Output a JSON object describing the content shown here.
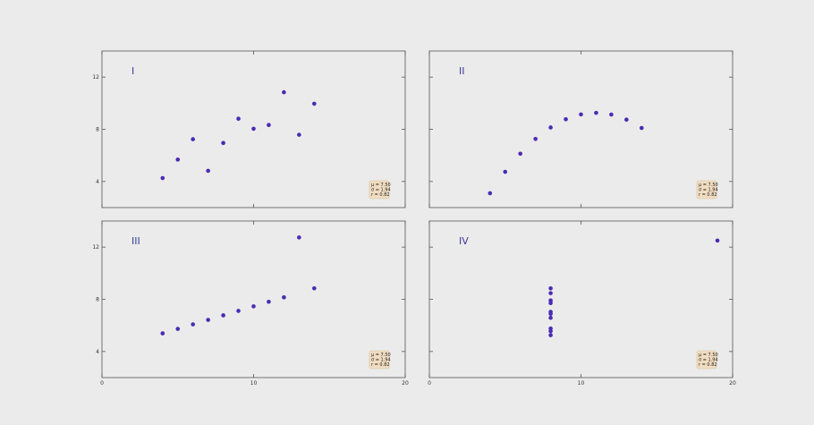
{
  "chart_data": [
    {
      "type": "scatter",
      "panel_label": "I",
      "x": [
        10,
        8,
        13,
        9,
        11,
        14,
        6,
        4,
        12,
        7,
        5
      ],
      "y": [
        8.04,
        6.95,
        7.58,
        8.81,
        8.33,
        9.96,
        7.24,
        4.26,
        10.84,
        4.82,
        5.68
      ],
      "xlim": [
        0,
        20
      ],
      "ylim": [
        2,
        14
      ],
      "yticks": [
        "4",
        "8",
        "12"
      ],
      "xticks": [],
      "stats": {
        "mean": "μ = 7.50",
        "std": "σ = 1.94",
        "r": "r = 0.82"
      },
      "point_color": "#4b2ab3",
      "grid": false
    },
    {
      "type": "scatter",
      "panel_label": "II",
      "x": [
        10,
        8,
        13,
        9,
        11,
        14,
        6,
        4,
        12,
        7,
        5
      ],
      "y": [
        9.14,
        8.14,
        8.74,
        8.77,
        9.26,
        8.1,
        6.13,
        3.1,
        9.13,
        7.26,
        4.74
      ],
      "xlim": [
        0,
        20
      ],
      "ylim": [
        2,
        14
      ],
      "yticks": [],
      "xticks": [],
      "stats": {
        "mean": "μ = 7.50",
        "std": "σ = 1.94",
        "r": "r = 0.82"
      },
      "point_color": "#4b2ab3",
      "grid": false
    },
    {
      "type": "scatter",
      "panel_label": "III",
      "x": [
        10,
        8,
        13,
        9,
        11,
        14,
        6,
        4,
        12,
        7,
        5
      ],
      "y": [
        7.46,
        6.77,
        12.74,
        7.11,
        7.81,
        8.84,
        6.08,
        5.39,
        8.15,
        6.42,
        5.73
      ],
      "xlim": [
        0,
        20
      ],
      "ylim": [
        2,
        14
      ],
      "yticks": [
        "4",
        "8",
        "12"
      ],
      "xticks": [
        "0",
        "10",
        "20"
      ],
      "stats": {
        "mean": "μ = 7.50",
        "std": "σ = 1.94",
        "r": "r = 0.82"
      },
      "point_color": "#4b2ab3",
      "grid": false
    },
    {
      "type": "scatter",
      "panel_label": "IV",
      "x": [
        8,
        8,
        8,
        8,
        8,
        8,
        8,
        19,
        8,
        8,
        8
      ],
      "y": [
        6.58,
        5.76,
        7.71,
        8.84,
        8.47,
        7.04,
        5.25,
        12.5,
        5.56,
        7.91,
        6.89
      ],
      "xlim": [
        0,
        20
      ],
      "ylim": [
        2,
        14
      ],
      "yticks": [],
      "xticks": [
        "0",
        "10",
        "20"
      ],
      "stats": {
        "mean": "μ = 7.50",
        "std": "σ = 1.94",
        "r": "r = 0.82"
      },
      "point_color": "#4b2ab3",
      "grid": false
    }
  ],
  "colors": {
    "background": "#ebebeb",
    "axes_border": "#555555",
    "panel_label": "#3a3a9a",
    "stats_box_fill": "#f0dcc0",
    "stats_box_stroke": "#d8c4a0"
  }
}
